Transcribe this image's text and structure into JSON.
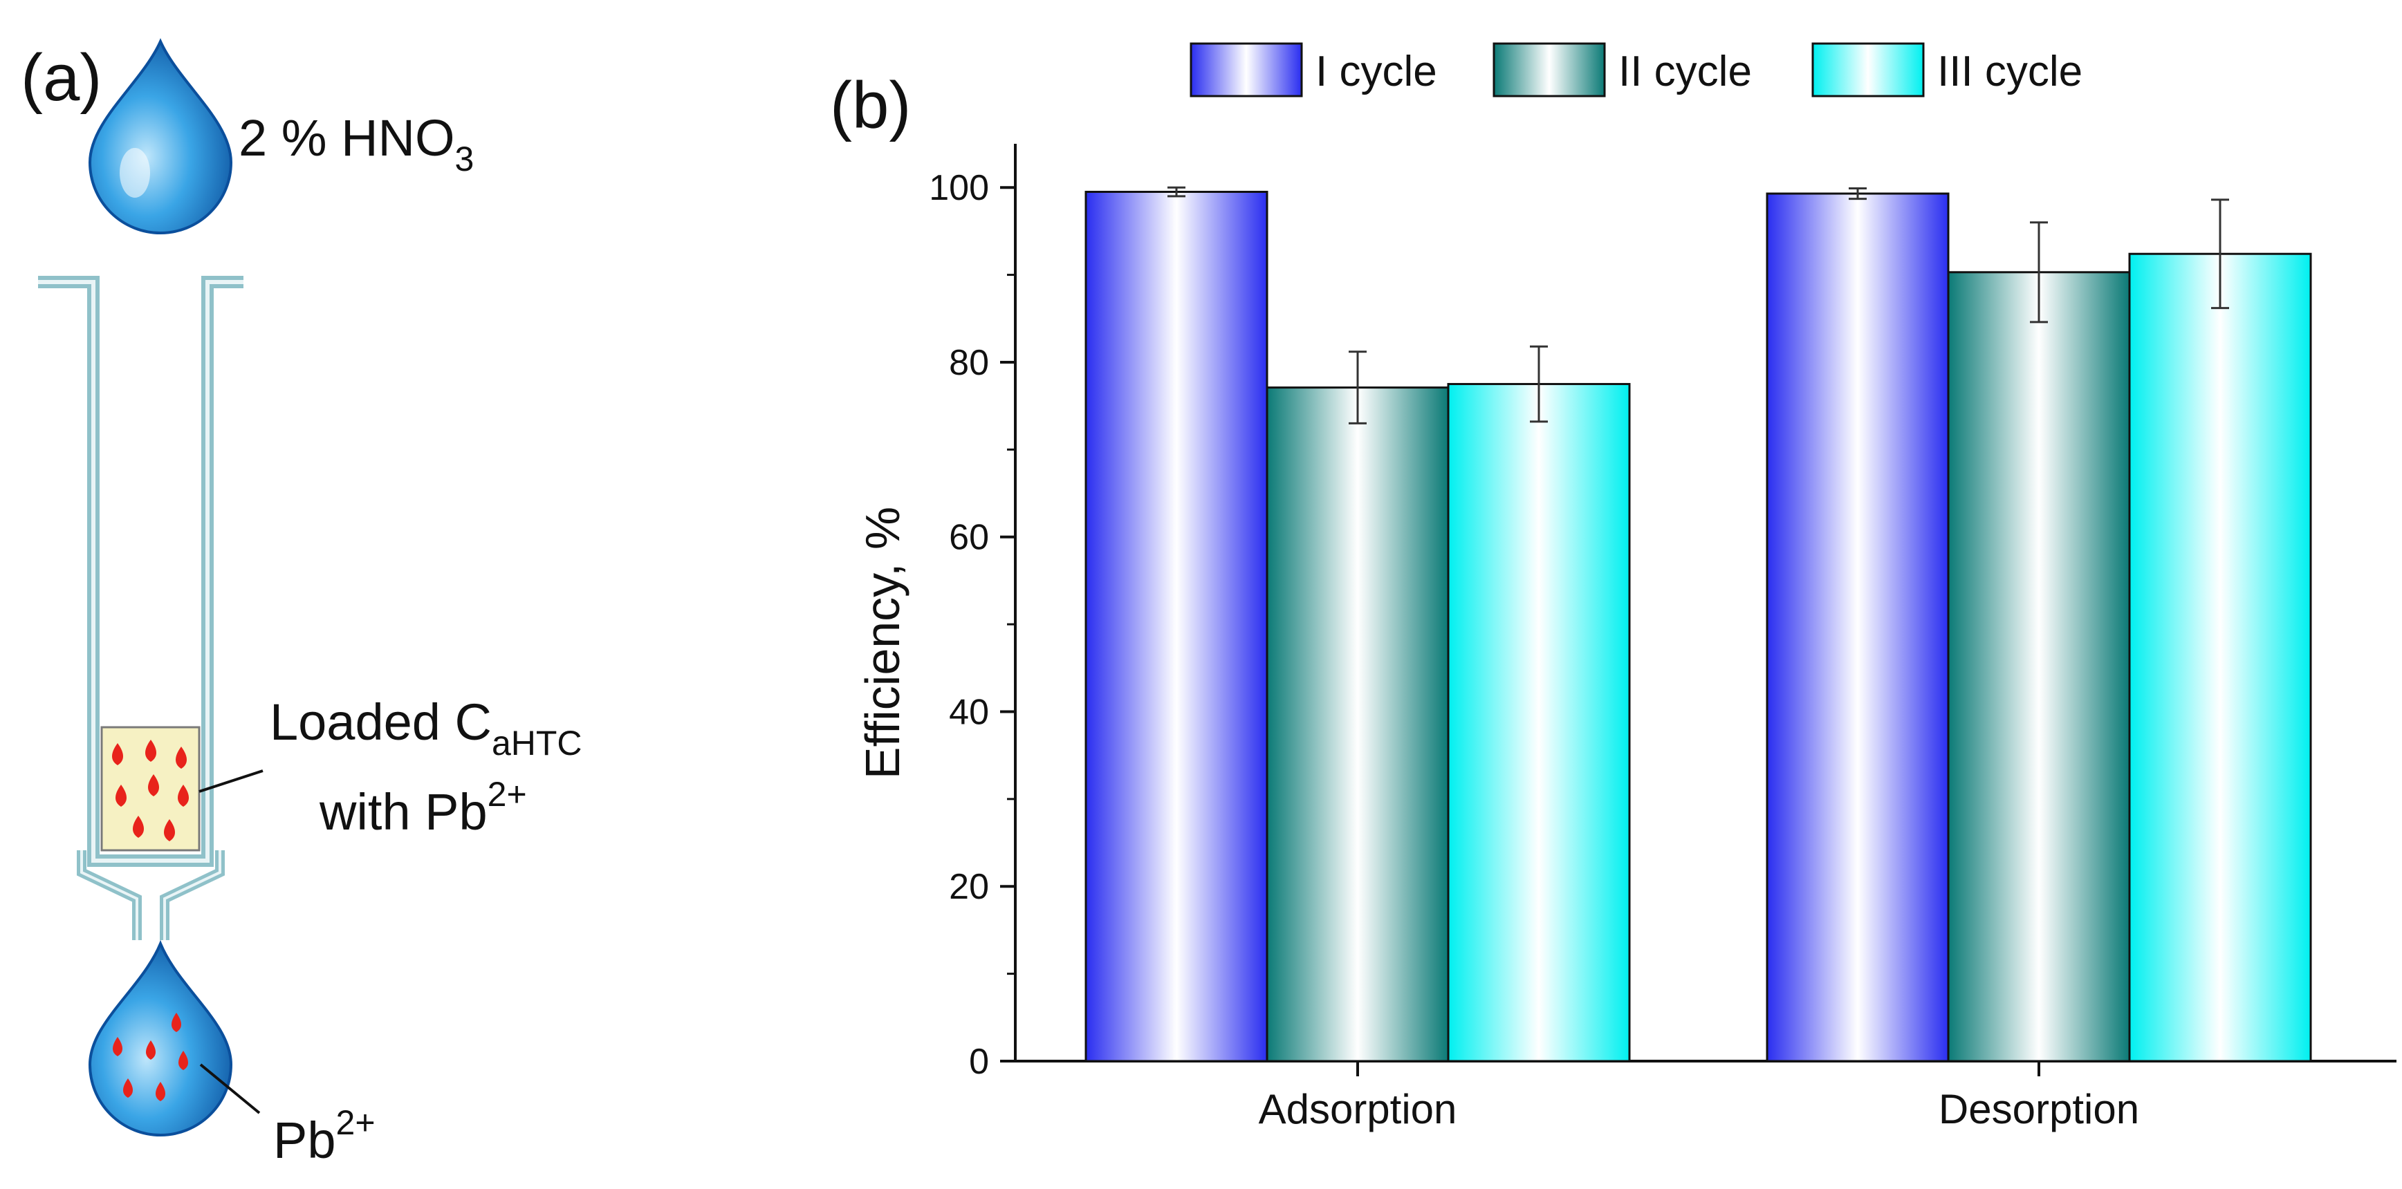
{
  "panel_a": {
    "label": "(a)",
    "eluent": {
      "text": "2 % HNO",
      "sub": "3"
    },
    "column_label": {
      "line1": "Loaded C",
      "line1_sub": "aHTC",
      "line2": "with Pb",
      "line2_sup": "2+"
    },
    "effluent_label": {
      "text": "Pb",
      "sup": "2+"
    },
    "colors": {
      "drop": "#1f8fd6",
      "tube": "#8fc1c9",
      "sorbent": "#f6f1c3",
      "ion": "#e8231b"
    }
  },
  "panel_b": {
    "label": "(b)"
  },
  "chart_data": {
    "type": "bar",
    "title": "",
    "xlabel": "",
    "ylabel": "Efficiency, %",
    "ylim": [
      0,
      105
    ],
    "yticks": [
      0,
      20,
      40,
      60,
      80,
      100
    ],
    "categories": [
      "Adsorption",
      "Desorption"
    ],
    "series": [
      {
        "name": "I cycle",
        "values": [
          99.5,
          99.3
        ],
        "errors": [
          0.5,
          0.6
        ],
        "color": "#2a2ef0"
      },
      {
        "name": "II cycle",
        "values": [
          77.1,
          90.3
        ],
        "errors": [
          4.1,
          5.7
        ],
        "color": "#0b7a76"
      },
      {
        "name": "III cycle",
        "values": [
          77.5,
          92.4
        ],
        "errors": [
          4.3,
          6.2
        ],
        "color": "#00f0f0"
      }
    ],
    "legend_position": "top",
    "grid": false
  }
}
